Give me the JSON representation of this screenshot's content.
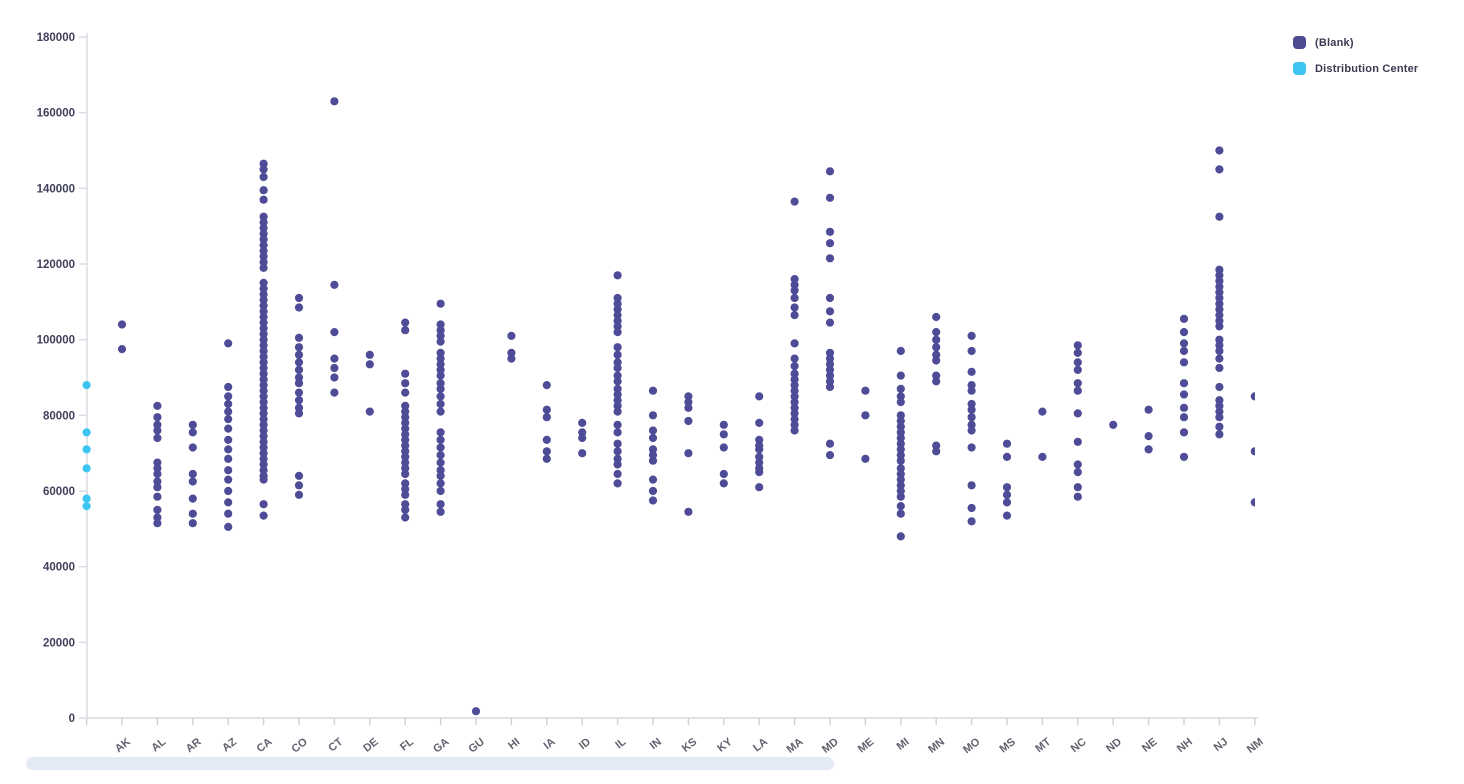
{
  "legend": {
    "items": [
      {
        "label": "(Blank)",
        "color": "#4f4b93"
      },
      {
        "label": "Distribution Center",
        "color": "#3cc5f0"
      }
    ]
  },
  "chart_data": {
    "type": "scatter",
    "title": "",
    "xlabel": "",
    "ylabel": "",
    "grid": false,
    "legend_position": "top-right",
    "point_color_blank": "#4e4b97",
    "point_color_distribution_center": "#3cc5f0",
    "y_axis": {
      "min": 0,
      "max": 180000,
      "tick_step": 20000,
      "ticks": [
        0,
        20000,
        40000,
        60000,
        80000,
        100000,
        120000,
        140000,
        160000,
        180000
      ]
    },
    "x_axis": {
      "categories": [
        "",
        "AK",
        "AL",
        "AR",
        "AZ",
        "CA",
        "CO",
        "CT",
        "DE",
        "FL",
        "GA",
        "GU",
        "HI",
        "IA",
        "ID",
        "IL",
        "IN",
        "KS",
        "KY",
        "LA",
        "MA",
        "MD",
        "ME",
        "MI",
        "MN",
        "MO",
        "MS",
        "MT",
        "NC",
        "ND",
        "NE",
        "NH",
        "NJ",
        "NM"
      ],
      "label_rotation_deg": -38,
      "note_first_category_label_hidden": ""
    },
    "series": [
      {
        "name": "(Blank)",
        "color": "#4e4b97",
        "points": {
          "AK": [
            104000,
            97500
          ],
          "AL": [
            82500,
            79500,
            77500,
            76000,
            74000,
            67500,
            66000,
            64500,
            62500,
            61000,
            58500,
            55000,
            53000,
            51500
          ],
          "AR": [
            77500,
            75500,
            71500,
            64500,
            62500,
            58000,
            54000,
            51500
          ],
          "AZ": [
            99000,
            87500,
            85000,
            83000,
            81000,
            79000,
            76500,
            73500,
            71000,
            68500,
            65500,
            63000,
            60000,
            57000,
            54000,
            50500
          ],
          "CA": [
            146500,
            145000,
            143000,
            139500,
            137000,
            132500,
            131000,
            129500,
            128000,
            126500,
            125000,
            123500,
            122000,
            120500,
            119000,
            115000,
            113500,
            112000,
            110500,
            109000,
            107500,
            106000,
            104500,
            103000,
            101500,
            100000,
            98500,
            97000,
            95500,
            94000,
            92500,
            91000,
            89500,
            88000,
            86500,
            85000,
            83500,
            82000,
            80500,
            79000,
            77500,
            76000,
            74500,
            73000,
            71500,
            70000,
            68500,
            67000,
            65500,
            64000,
            63000,
            56500,
            53500
          ],
          "CO": [
            111000,
            108500,
            100500,
            98000,
            96000,
            94000,
            92000,
            90000,
            88500,
            86000,
            84000,
            82000,
            80500,
            64000,
            61500,
            59000
          ],
          "CT": [
            163000,
            114500,
            102000,
            95000,
            92500,
            90000,
            86000
          ],
          "DE": [
            96000,
            93500,
            81000
          ],
          "FL": [
            104500,
            102500,
            91000,
            88500,
            86000,
            82500,
            81000,
            79500,
            78000,
            76500,
            75000,
            73500,
            72000,
            70500,
            69000,
            67500,
            66000,
            64500,
            62000,
            60500,
            59000,
            56500,
            55000,
            53000
          ],
          "GA": [
            109500,
            104000,
            102500,
            101000,
            99500,
            96500,
            95000,
            93500,
            92000,
            90500,
            88500,
            87000,
            85000,
            83000,
            81000,
            75500,
            73500,
            71500,
            69500,
            67500,
            65500,
            64000,
            62000,
            60000,
            56500,
            54500
          ],
          "GU": [
            1800
          ],
          "HI": [
            101000,
            96500,
            95000
          ],
          "IA": [
            88000,
            81500,
            79500,
            73500,
            70500,
            68500
          ],
          "ID": [
            78000,
            75500,
            74000,
            70000
          ],
          "IL": [
            117000,
            111000,
            109500,
            108000,
            106500,
            105000,
            103500,
            102000,
            98000,
            96000,
            94000,
            92500,
            90500,
            89000,
            87000,
            85500,
            84000,
            82500,
            81000,
            77500,
            75500,
            72500,
            70500,
            68500,
            67000,
            64500,
            62000
          ],
          "IN": [
            86500,
            80000,
            76000,
            74000,
            71000,
            69500,
            68000,
            63000,
            60000,
            57500
          ],
          "KS": [
            85000,
            83500,
            82000,
            78500,
            70000,
            54500
          ],
          "KY": [
            77500,
            75000,
            71500,
            64500,
            62000
          ],
          "LA": [
            85000,
            78000,
            73500,
            72000,
            71000,
            69000,
            67500,
            66000,
            65000,
            61000
          ],
          "MA": [
            136500,
            116000,
            114500,
            113000,
            111000,
            108500,
            106500,
            99000,
            95000,
            93000,
            91000,
            89500,
            88000,
            86500,
            85000,
            83500,
            82000,
            80500,
            79000,
            77500,
            76000
          ],
          "MD": [
            144500,
            137500,
            128500,
            125500,
            121500,
            111000,
            107500,
            104500,
            96500,
            95000,
            93500,
            92000,
            90500,
            89000,
            87500,
            72500,
            69500
          ],
          "ME": [
            86500,
            80000,
            68500
          ],
          "MI": [
            97000,
            90500,
            87000,
            85000,
            83500,
            80000,
            78500,
            77000,
            75500,
            74000,
            72500,
            71000,
            69500,
            68000,
            66000,
            64500,
            63000,
            61500,
            60000,
            58500,
            56000,
            54000,
            48000
          ],
          "MN": [
            106000,
            102000,
            100000,
            98000,
            96000,
            94500,
            90500,
            89000,
            72000,
            70500
          ],
          "MO": [
            101000,
            97000,
            91500,
            88000,
            86500,
            83000,
            81500,
            79500,
            77500,
            76000,
            71500,
            61500,
            55500,
            52000
          ],
          "MS": [
            72500,
            69000,
            61000,
            59000,
            57000,
            53500
          ],
          "MT": [
            81000,
            69000
          ],
          "NC": [
            98500,
            96500,
            94000,
            92000,
            88500,
            86500,
            80500,
            73000,
            67000,
            65000,
            61000,
            58500
          ],
          "ND": [
            77500
          ],
          "NE": [
            81500,
            74500,
            71000
          ],
          "NH": [
            105500,
            102000,
            99000,
            97000,
            94000,
            88500,
            85500,
            82000,
            79500,
            75500,
            69000
          ],
          "NJ": [
            150000,
            145000,
            132500,
            118500,
            117000,
            115500,
            114000,
            112500,
            111000,
            109500,
            108000,
            106500,
            105000,
            103500,
            100000,
            98500,
            97000,
            95000,
            92500,
            87500,
            84000,
            82500,
            81000,
            79500,
            77000,
            75000
          ],
          "NM": [
            85000,
            70500,
            57000
          ]
        }
      },
      {
        "name": "Distribution Center",
        "color": "#3cc5f0",
        "points": {
          "": [
            88000,
            75500,
            71000,
            66000,
            58000,
            56000
          ]
        }
      }
    ]
  }
}
